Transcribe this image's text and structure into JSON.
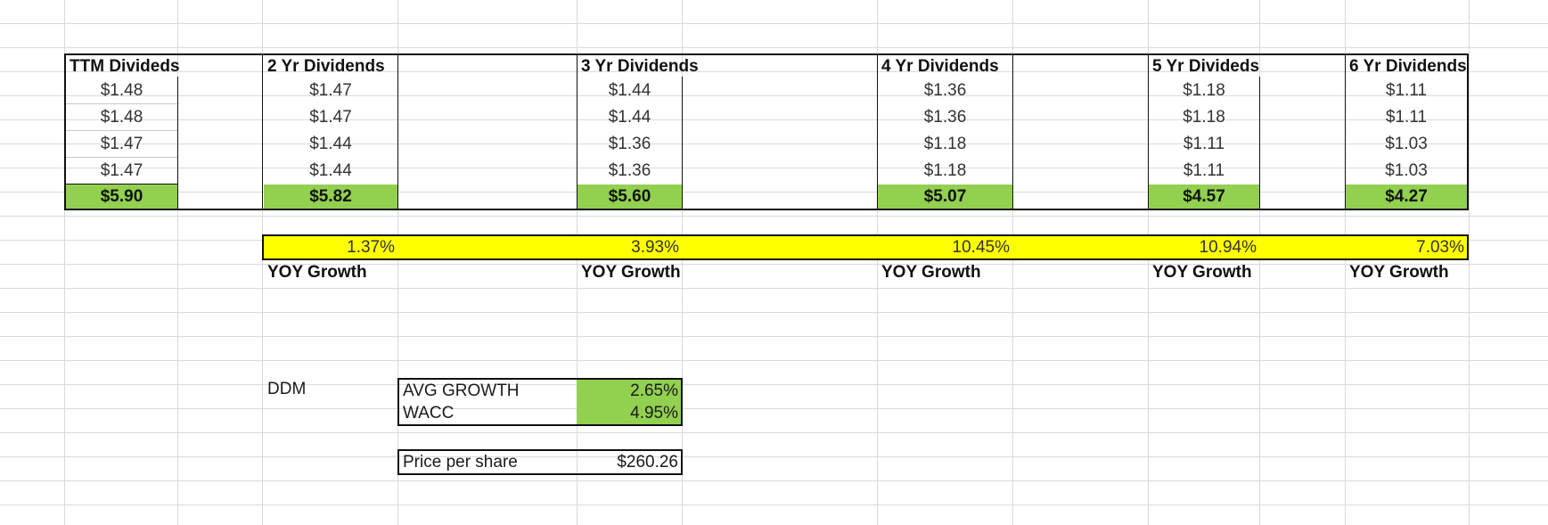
{
  "columns": [
    {
      "header": "TTM Divideds",
      "values": [
        "$1.48",
        "$1.48",
        "$1.47",
        "$1.47"
      ],
      "total": "$5.90"
    },
    {
      "header": "2 Yr Dividends",
      "values": [
        "$1.47",
        "$1.47",
        "$1.44",
        "$1.44"
      ],
      "total": "$5.82"
    },
    {
      "header": "3 Yr Dividends",
      "values": [
        "$1.44",
        "$1.44",
        "$1.36",
        "$1.36"
      ],
      "total": "$5.60"
    },
    {
      "header": "4 Yr Dividends",
      "values": [
        "$1.36",
        "$1.36",
        "$1.18",
        "$1.18"
      ],
      "total": "$5.07"
    },
    {
      "header": "5 Yr Divideds",
      "values": [
        "$1.18",
        "$1.18",
        "$1.11",
        "$1.11"
      ],
      "total": "$4.57"
    },
    {
      "header": "6 Yr Dividends",
      "values": [
        "$1.11",
        "$1.11",
        "$1.03",
        "$1.03"
      ],
      "total": "$4.27"
    }
  ],
  "growth": [
    "1.37%",
    "3.93%",
    "10.45%",
    "10.94%",
    "7.03%"
  ],
  "growth_label": "YOY Growth",
  "ddm": {
    "label": "DDM",
    "avg_growth_label": "AVG GROWTH",
    "avg_growth_value": "2.65%",
    "wacc_label": "WACC",
    "wacc_value": "4.95%",
    "price_label": "Price per share",
    "price_value": "$260.26"
  },
  "colors": {
    "total_fill": "#92d050",
    "growth_fill": "#ffff00",
    "gridline": "#dadada"
  }
}
